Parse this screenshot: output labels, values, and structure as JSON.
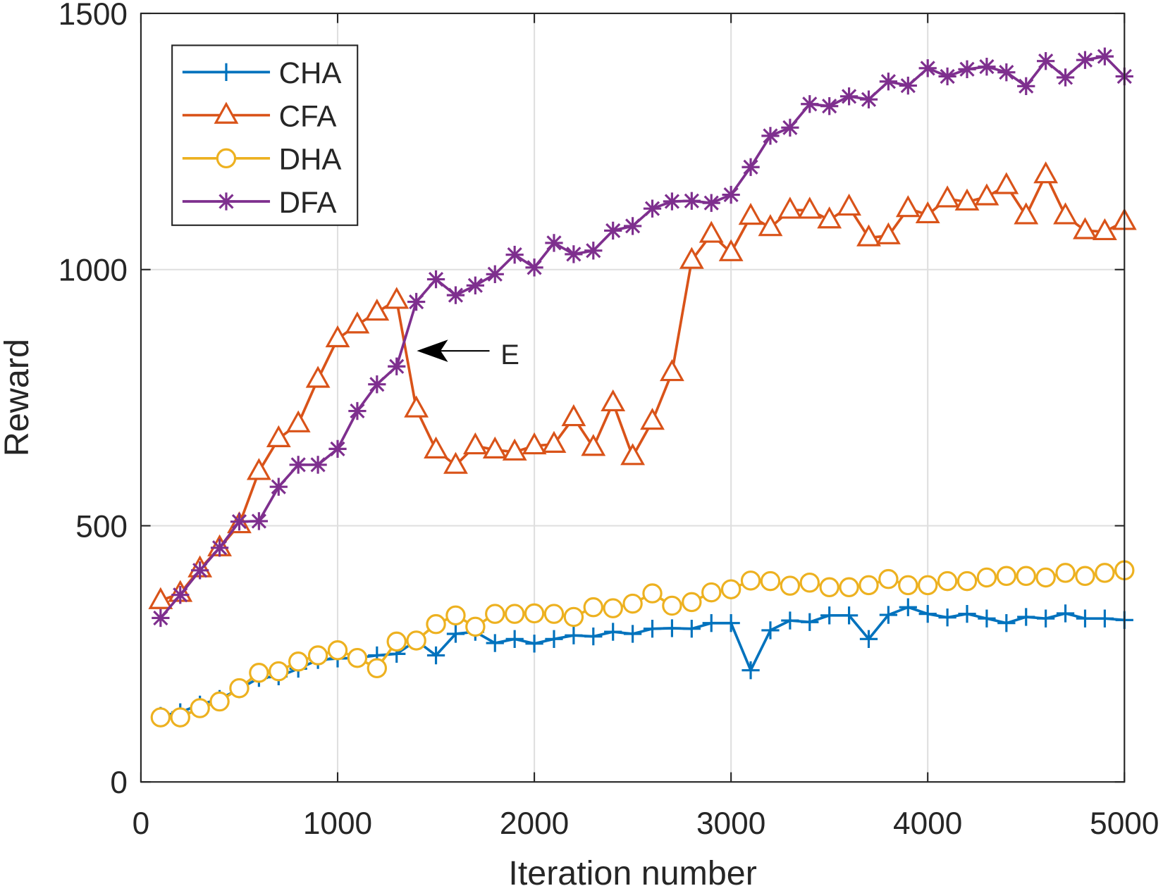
{
  "chart_data": {
    "type": "line",
    "title": "",
    "xlabel": "Iteration number",
    "ylabel": "Reward",
    "xlim": [
      0,
      5000
    ],
    "ylim": [
      0,
      1500
    ],
    "xticks": [
      "0",
      "1000",
      "2000",
      "3000",
      "4000",
      "5000"
    ],
    "yticks": [
      "0",
      "500",
      "1000",
      "1500"
    ],
    "grid": true,
    "legend_position": "top-left",
    "x": [
      100,
      200,
      300,
      400,
      500,
      600,
      700,
      800,
      900,
      1000,
      1100,
      1200,
      1300,
      1400,
      1500,
      1600,
      1700,
      1800,
      1900,
      2000,
      2100,
      2200,
      2300,
      2400,
      2500,
      2600,
      2700,
      2800,
      2900,
      3000,
      3100,
      3200,
      3300,
      3400,
      3500,
      3600,
      3700,
      3800,
      3900,
      4000,
      4100,
      4200,
      4300,
      4400,
      4500,
      4600,
      4700,
      4800,
      4900,
      5000
    ],
    "series": [
      {
        "name": "CHA",
        "color": "#0072BD",
        "marker": "plus",
        "values": [
          129,
          136,
          151,
          162,
          181,
          203,
          206,
          221,
          238,
          241,
          242,
          247,
          250,
          276,
          247,
          289,
          293,
          271,
          279,
          270,
          279,
          286,
          284,
          293,
          289,
          299,
          300,
          299,
          310,
          310,
          218,
          296,
          315,
          312,
          325,
          325,
          279,
          326,
          341,
          328,
          321,
          328,
          319,
          310,
          322,
          319,
          329,
          319,
          319,
          316
        ]
      },
      {
        "name": "CFA",
        "color": "#D95319",
        "marker": "triangle",
        "values": [
          354,
          368,
          416,
          457,
          502,
          606,
          670,
          699,
          786,
          865,
          892,
          917,
          940,
          728,
          648,
          618,
          656,
          648,
          644,
          656,
          659,
          711,
          653,
          740,
          635,
          704,
          799,
          1018,
          1069,
          1033,
          1104,
          1082,
          1116,
          1116,
          1097,
          1122,
          1062,
          1066,
          1119,
          1107,
          1138,
          1132,
          1142,
          1164,
          1105,
          1185,
          1105,
          1076,
          1074,
          1094
        ]
      },
      {
        "name": "DHA",
        "color": "#EDB120",
        "marker": "circle",
        "values": [
          126,
          126,
          144,
          157,
          183,
          213,
          216,
          235,
          247,
          257,
          242,
          222,
          274,
          276,
          308,
          325,
          303,
          328,
          328,
          329,
          328,
          322,
          341,
          339,
          348,
          368,
          344,
          351,
          370,
          376,
          393,
          392,
          383,
          389,
          380,
          380,
          384,
          396,
          384,
          384,
          392,
          392,
          399,
          402,
          402,
          399,
          408,
          402,
          408,
          413
        ]
      },
      {
        "name": "DFA",
        "color": "#7E2F8E",
        "marker": "asterisk",
        "values": [
          320,
          365,
          413,
          457,
          508,
          509,
          576,
          619,
          619,
          650,
          724,
          776,
          811,
          937,
          981,
          950,
          969,
          991,
          1029,
          1004,
          1052,
          1030,
          1037,
          1076,
          1085,
          1119,
          1133,
          1134,
          1130,
          1146,
          1200,
          1261,
          1277,
          1323,
          1319,
          1338,
          1332,
          1367,
          1359,
          1393,
          1377,
          1391,
          1396,
          1385,
          1358,
          1407,
          1375,
          1409,
          1416,
          1377
        ]
      }
    ],
    "annotations": [
      {
        "text": "E",
        "points_to": {
          "x": 1400,
          "y": 850
        }
      }
    ]
  }
}
